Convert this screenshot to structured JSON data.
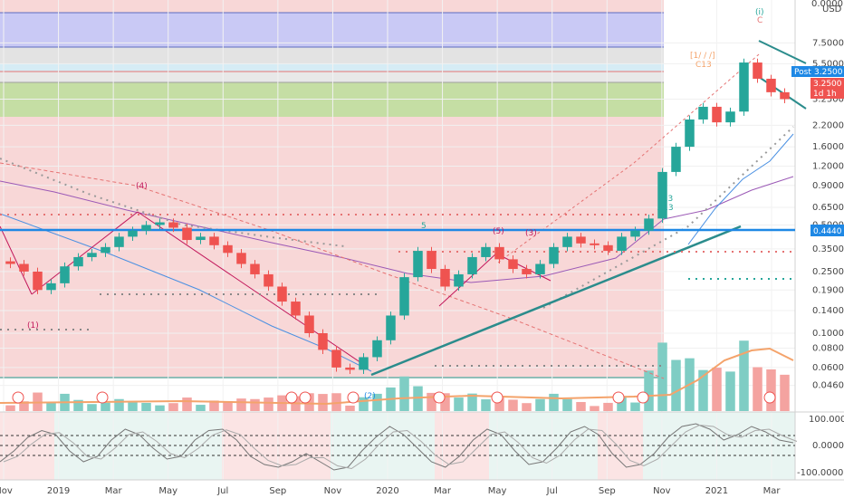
{
  "header": {
    "currency": "USD"
  },
  "badges": {
    "post_label": "Post",
    "post_price": "3.2500",
    "last_price": "3.2500",
    "countdown": "1d 1h",
    "level_price": "0.4440",
    "osc_top": "100.0000",
    "osc_mid": "0.0000",
    "osc_bot": "-100.0000"
  },
  "colors": {
    "up": "#26a69a",
    "down": "#ef5350",
    "axis_badge": "#1e88e5",
    "band_red": "#f8d7d7",
    "band_blue": "#c9c9f5",
    "band_gray": "#e3e3e3",
    "band_green": "#c5dea4",
    "trend": "#2b8c8c",
    "ma_orange": "#f4a36b",
    "ma_purple": "#9b59b6",
    "ma_blue": "#4a90e2"
  },
  "annotations": {
    "wave_labels": [
      "(4)",
      "(5)",
      "(1)",
      "C",
      "[1/ / /]",
      "C13",
      "5",
      "A13",
      "S13",
      "(2)",
      "(3)",
      "(i)"
    ]
  },
  "chart_data": [
    {
      "type": "line",
      "title": "",
      "scale": "log",
      "y_ticks": [
        "7.5000",
        "5.5000",
        "3.2500",
        "2.2000",
        "1.6000",
        "1.2000",
        "0.9000",
        "0.6500",
        "0.5000",
        "0.3500",
        "0.2500",
        "0.1900",
        "0.1400",
        "0.1000",
        "0.0800",
        "0.0600",
        "0.0460"
      ],
      "y_top_label": "0.0000",
      "x_ticks": [
        "Nov",
        "2019",
        "Mar",
        "May",
        "Jul",
        "Sep",
        "Nov",
        "2020",
        "Mar",
        "May",
        "Jul",
        "Sep",
        "Nov",
        "2021",
        "Mar"
      ],
      "ylim": [
        0.04,
        10
      ],
      "series": [
        {
          "values": [
            0.28,
            0.25,
            0.19,
            0.21,
            0.27,
            0.31,
            0.33,
            0.36,
            0.42,
            0.46,
            0.5,
            0.52,
            0.48,
            0.4,
            0.42,
            0.37,
            0.33,
            0.28,
            0.24,
            0.2,
            0.16,
            0.13,
            0.1,
            0.078,
            0.06,
            0.058,
            0.07,
            0.09,
            0.13,
            0.23,
            0.34,
            0.26,
            0.2,
            0.24,
            0.31,
            0.36,
            0.3,
            0.26,
            0.24,
            0.28,
            0.36,
            0.42,
            0.38,
            0.37,
            0.34,
            0.42,
            0.46,
            0.55,
            1.1,
            1.6,
            2.4,
            2.9,
            2.3,
            2.7,
            5.6,
            4.4,
            3.6,
            3.25
          ]
        }
      ],
      "horizontal_level": 0.444
    },
    {
      "type": "line",
      "title": "",
      "y_ticks": [
        "100.0000",
        "0.0000",
        "-100.0000"
      ],
      "ylim": [
        -100,
        100
      ],
      "series": [
        {
          "values": [
            -60,
            -20,
            30,
            55,
            40,
            -20,
            -60,
            -40,
            20,
            60,
            40,
            -10,
            -50,
            -40,
            20,
            55,
            60,
            20,
            -40,
            -70,
            -80,
            -60,
            -30,
            -60,
            -90,
            -80,
            -20,
            30,
            70,
            40,
            -10,
            -60,
            -80,
            -40,
            20,
            60,
            40,
            -20,
            -70,
            -60,
            -10,
            50,
            70,
            40,
            -30,
            -80,
            -70,
            -30,
            30,
            70,
            80,
            60,
            20,
            40,
            70,
            50,
            20,
            10
          ]
        }
      ]
    }
  ]
}
